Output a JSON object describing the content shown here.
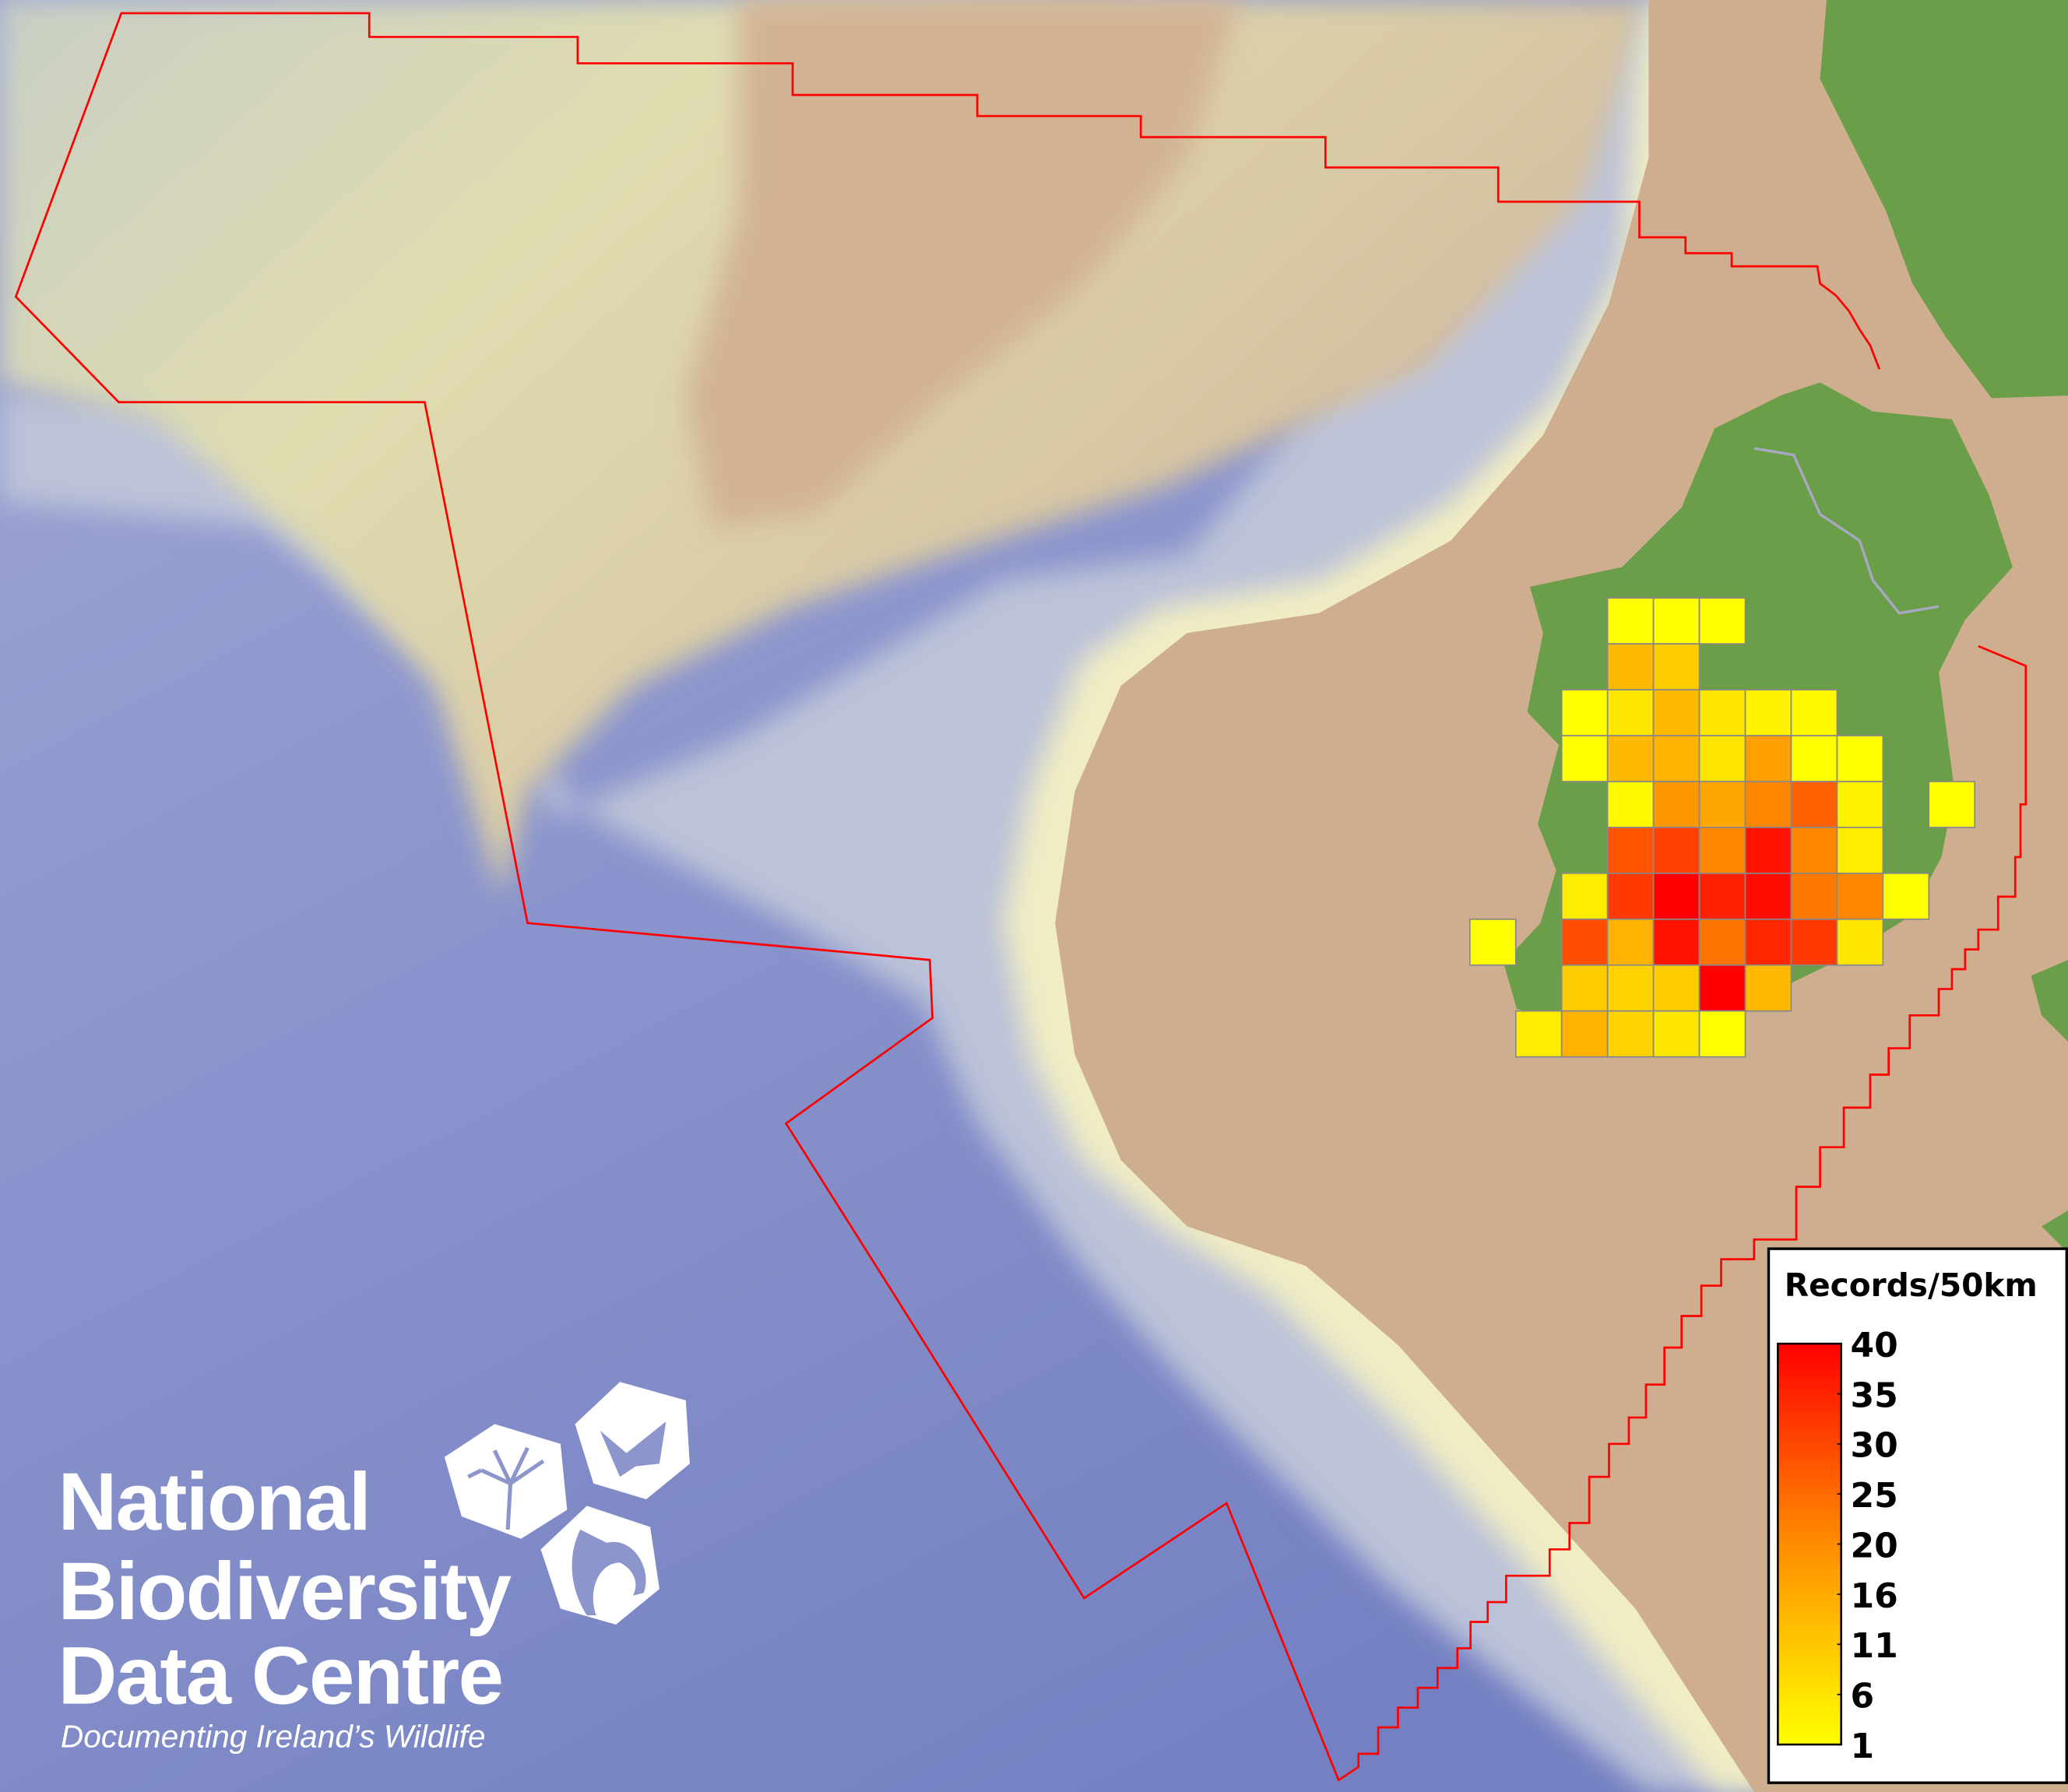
{
  "map": {
    "colors": {
      "deep_ocean": "#7c88c8",
      "slope": "#b9bed6",
      "shelf_light": "#dcdcb8",
      "shelf_tan": "#cfae90",
      "land": "#6a9e48",
      "boundary": "#ff0000",
      "cell_border": "#888888"
    },
    "grid": {
      "unit": "Records/50km",
      "rows": [
        [
          null,
          null,
          null,
          1,
          1,
          1,
          null,
          null,
          null,
          null,
          null
        ],
        [
          null,
          null,
          null,
          12,
          9,
          null,
          null,
          null,
          null,
          null,
          null
        ],
        [
          null,
          null,
          1,
          5,
          12,
          5,
          3,
          2,
          null,
          null,
          null
        ],
        [
          null,
          null,
          1,
          12,
          13,
          5,
          16,
          1,
          1,
          null,
          null
        ],
        [
          null,
          null,
          null,
          2,
          17,
          15,
          19,
          25,
          3,
          null,
          1
        ],
        [
          null,
          null,
          null,
          27,
          30,
          19,
          37,
          19,
          4,
          null,
          null
        ],
        [
          null,
          null,
          4,
          31,
          40,
          35,
          38,
          21,
          19,
          1,
          null
        ],
        [
          1,
          null,
          28,
          13,
          37,
          22,
          34,
          31,
          5,
          null,
          null
        ],
        [
          null,
          null,
          9,
          8,
          9,
          40,
          12,
          null,
          null,
          null,
          null
        ],
        [
          null,
          4,
          13,
          8,
          5,
          1,
          null,
          null,
          null,
          null,
          null
        ]
      ]
    }
  },
  "legend": {
    "title": "Records/50km",
    "ticks": [
      "40",
      "35",
      "30",
      "25",
      "20",
      "16",
      "11",
      "6",
      "1"
    ],
    "tick_values": [
      40,
      35,
      30,
      25,
      20,
      16,
      11,
      6,
      1
    ],
    "color_low": "#ffff00",
    "color_high": "#ff0000"
  },
  "logo": {
    "line1": "National",
    "line2": "Biodiversity",
    "line3": "Data Centre",
    "tagline": "Documenting Ireland’s Wildlife",
    "icons": [
      "tree-icon",
      "butterfly-icon",
      "seahorse-icon"
    ]
  }
}
